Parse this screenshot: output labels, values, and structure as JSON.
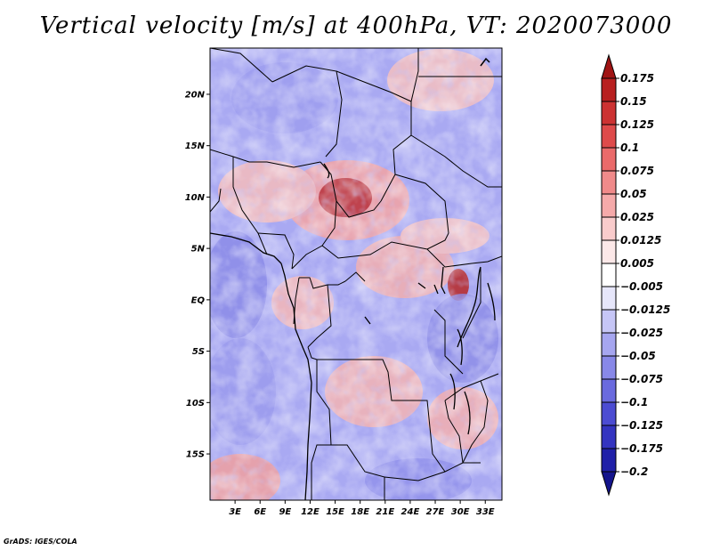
{
  "title": "Vertical velocity [m/s] at 400hPa, VT: 2020073000",
  "footer": "GrADS: IGES/COLA",
  "map": {
    "lat_labels": [
      "20N",
      "15N",
      "10N",
      "5N",
      "EQ",
      "5S",
      "10S",
      "15S"
    ],
    "lat_values": [
      20,
      15,
      10,
      5,
      0,
      -5,
      -10,
      -15
    ],
    "lon_labels": [
      "3E",
      "6E",
      "9E",
      "12E",
      "15E",
      "18E",
      "21E",
      "24E",
      "27E",
      "30E",
      "33E"
    ],
    "lon_values": [
      3,
      6,
      9,
      12,
      15,
      18,
      21,
      24,
      27,
      30,
      33
    ],
    "lon_range": [
      0,
      35
    ],
    "lat_range": [
      -19.5,
      24.5
    ]
  },
  "colorbar": {
    "levels": [
      "0.175",
      "0.15",
      "0.125",
      "0.1",
      "0.075",
      "0.05",
      "0.025",
      "0.0125",
      "0.005",
      "−0.005",
      "−0.0125",
      "−0.025",
      "−0.05",
      "−0.075",
      "−0.1",
      "−0.125",
      "−0.175",
      "−0.2"
    ],
    "colors": [
      "#a01414",
      "#b82020",
      "#cc3232",
      "#de4a4a",
      "#ea6a6a",
      "#f08a8a",
      "#f5aaaa",
      "#f9cccc",
      "#fce8e8",
      "#ffffff",
      "#e6e6fa",
      "#c6c6f6",
      "#a6a6f0",
      "#8888e8",
      "#6a6ade",
      "#4c4cd2",
      "#3434c0",
      "#2020a8",
      "#14148c"
    ]
  }
}
